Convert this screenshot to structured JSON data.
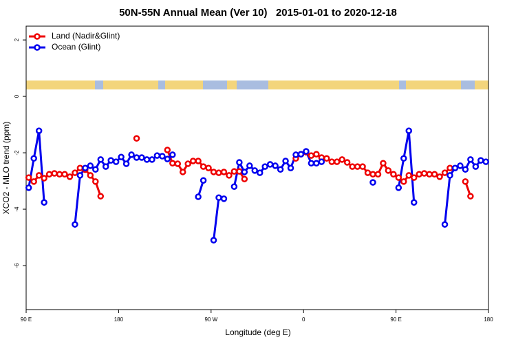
{
  "chart_data": {
    "type": "line",
    "title": "50N-55N Annual Mean (Ver 10)   2015-01-01 to 2020-12-18",
    "x_label": "Longitude (deg E)",
    "y_label": "XCO2 - MLO trend (ppm)",
    "xlim": [
      90,
      540
    ],
    "ylim": [
      -7.56,
      2.49
    ],
    "xticks": [
      {
        "value": 90,
        "label": "90 E"
      },
      180,
      {
        "value": 270,
        "label": "90 W"
      },
      {
        "value": 360,
        "label": "0"
      },
      {
        "value": 450,
        "label": "90 E"
      },
      {
        "value": 540,
        "label": "180"
      }
    ],
    "yticks": [
      2,
      0,
      -2,
      -4,
      -6
    ],
    "legend": "top-left",
    "x": [
      92.5,
      97.5,
      102.5,
      107.5,
      112.5,
      117.5,
      122.5,
      127.5,
      132.5,
      137.5,
      142.5,
      147.5,
      152.5,
      157.5,
      162.5,
      167.5,
      172.5,
      177.5,
      182.5,
      187.5,
      192.5,
      197.5,
      202.5,
      207.5,
      212.5,
      217.5,
      222.5,
      227.5,
      232.5,
      237.5,
      242.5,
      247.5,
      252.5,
      257.5,
      262.5,
      267.5,
      272.5,
      277.5,
      282.5,
      287.5,
      292.5,
      297.5,
      302.5,
      307.5,
      312.5,
      317.5,
      322.5,
      327.5,
      332.5,
      337.5,
      342.5,
      347.5,
      352.5,
      357.5,
      362.5,
      367.5,
      372.5,
      377.5,
      382.5,
      387.5,
      392.5,
      397.5,
      402.5,
      407.5,
      412.5,
      417.5,
      422.5,
      427.5,
      432.5,
      437.5,
      442.5,
      447.5,
      452.5,
      457.5,
      462.5,
      467.5,
      472.5,
      477.5,
      482.5,
      487.5,
      492.5,
      497.5,
      502.5,
      507.5,
      512.5,
      517.5,
      522.5,
      527.5,
      532.5,
      537.5
    ],
    "series": [
      {
        "name": "Land (Nadir&Glint)",
        "color": "#ee0000",
        "values": [
          -2.88,
          -3.02,
          -2.8,
          -2.9,
          -2.76,
          -2.73,
          -2.76,
          -2.76,
          -2.85,
          -2.71,
          -2.54,
          -2.6,
          -2.8,
          -3.02,
          -3.54,
          null,
          null,
          null,
          null,
          null,
          null,
          -1.49,
          null,
          null,
          null,
          null,
          null,
          -1.9,
          -2.37,
          -2.39,
          -2.68,
          -2.39,
          -2.29,
          -2.29,
          -2.49,
          -2.54,
          -2.68,
          -2.71,
          -2.68,
          -2.8,
          -2.66,
          -2.66,
          -2.93,
          null,
          null,
          null,
          null,
          null,
          null,
          null,
          null,
          null,
          -2.2,
          -2.05,
          -1.98,
          -2.1,
          -2.05,
          -2.17,
          -2.2,
          -2.32,
          -2.32,
          -2.24,
          -2.34,
          -2.49,
          -2.49,
          -2.49,
          -2.71,
          -2.76,
          -2.76,
          -2.37,
          -2.63,
          -2.76,
          -2.88,
          -3.02,
          -2.8,
          -2.88,
          -2.76,
          -2.73,
          -2.76,
          -2.76,
          -2.85,
          -2.71,
          -2.54,
          null,
          null,
          -3.02,
          -3.54,
          null,
          null,
          null
        ]
      },
      {
        "name": "Ocean (Glint)",
        "color": "#0000ee",
        "values": [
          -3.24,
          -2.2,
          -1.22,
          -3.76,
          null,
          null,
          null,
          null,
          null,
          -4.54,
          -2.8,
          -2.54,
          -2.46,
          -2.59,
          -2.24,
          -2.49,
          -2.27,
          -2.32,
          -2.15,
          -2.39,
          -2.07,
          -2.17,
          -2.17,
          -2.24,
          -2.24,
          -2.1,
          -2.12,
          -2.22,
          -2.07,
          null,
          null,
          null,
          null,
          -3.56,
          -2.98,
          null,
          -5.1,
          -3.59,
          -3.63,
          null,
          -3.2,
          -2.34,
          -2.68,
          -2.46,
          -2.63,
          -2.71,
          -2.49,
          -2.41,
          -2.46,
          -2.59,
          -2.29,
          -2.54,
          -2.07,
          -2.05,
          -1.95,
          -2.37,
          -2.37,
          -2.32,
          null,
          null,
          null,
          null,
          null,
          null,
          null,
          null,
          null,
          -3.05,
          null,
          null,
          null,
          null,
          -3.24,
          -2.2,
          -1.22,
          -3.76,
          null,
          null,
          null,
          null,
          null,
          -4.54,
          -2.8,
          -2.54,
          -2.46,
          -2.59,
          -2.24,
          -2.49,
          -2.27,
          -2.32
        ]
      }
    ]
  }
}
